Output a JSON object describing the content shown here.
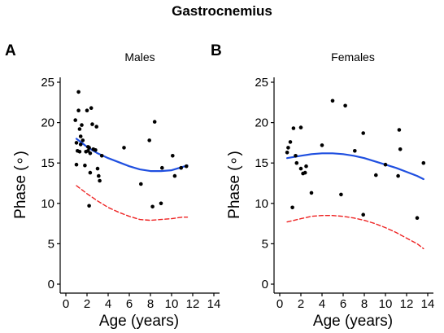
{
  "figure_title": "Gastrocnemius",
  "colors": {
    "points": "#000000",
    "fit_line": "#1f4fe0",
    "lower_line": "#ee2222"
  },
  "chart_data": [
    {
      "panel": "A",
      "type": "scatter",
      "title": "Males",
      "xlabel": "Age (years)",
      "ylabel": "Phase (∘)",
      "xlim": [
        0,
        14
      ],
      "ylim": [
        0,
        25
      ],
      "xticks": [
        0,
        2,
        4,
        6,
        8,
        10,
        12,
        14
      ],
      "yticks": [
        0,
        5,
        10,
        15,
        20,
        25
      ],
      "grid": false,
      "points": [
        [
          0.9,
          20.3
        ],
        [
          1.0,
          17.5
        ],
        [
          1.0,
          14.8
        ],
        [
          1.1,
          16.5
        ],
        [
          1.2,
          23.8
        ],
        [
          1.2,
          21.5
        ],
        [
          1.3,
          19.2
        ],
        [
          1.3,
          16.4
        ],
        [
          1.4,
          18.3
        ],
        [
          1.4,
          17.3
        ],
        [
          1.5,
          19.7
        ],
        [
          1.6,
          17.8
        ],
        [
          1.8,
          14.7
        ],
        [
          1.9,
          16.4
        ],
        [
          2.0,
          21.5
        ],
        [
          2.1,
          17.0
        ],
        [
          2.1,
          16.5
        ],
        [
          2.2,
          16.9
        ],
        [
          2.2,
          9.7
        ],
        [
          2.3,
          13.8
        ],
        [
          2.3,
          16.2
        ],
        [
          2.4,
          21.8
        ],
        [
          2.5,
          19.8
        ],
        [
          2.6,
          16.7
        ],
        [
          2.8,
          16.6
        ],
        [
          2.9,
          19.5
        ],
        [
          3.0,
          14.3
        ],
        [
          3.1,
          13.4
        ],
        [
          3.2,
          12.8
        ],
        [
          3.4,
          15.9
        ],
        [
          5.5,
          16.9
        ],
        [
          7.1,
          12.4
        ],
        [
          7.9,
          17.8
        ],
        [
          8.2,
          9.6
        ],
        [
          8.4,
          20.1
        ],
        [
          9.0,
          10.0
        ],
        [
          9.1,
          14.4
        ],
        [
          10.1,
          15.9
        ],
        [
          10.3,
          13.4
        ],
        [
          10.9,
          14.4
        ],
        [
          11.4,
          14.6
        ]
      ],
      "series": [
        {
          "style": "solid",
          "color": "blue",
          "x": [
            1.0,
            2.0,
            3.0,
            4.0,
            5.0,
            6.0,
            7.0,
            8.0,
            9.0,
            10.0,
            11.0,
            11.5
          ],
          "y": [
            18.0,
            17.0,
            16.2,
            15.6,
            15.1,
            14.6,
            14.2,
            14.0,
            14.0,
            14.1,
            14.5,
            14.7
          ]
        },
        {
          "style": "dashed",
          "color": "red",
          "x": [
            1.0,
            2.0,
            3.0,
            4.0,
            5.0,
            6.0,
            7.0,
            8.0,
            9.0,
            10.0,
            11.0,
            11.5
          ],
          "y": [
            12.2,
            11.2,
            10.3,
            9.5,
            8.9,
            8.4,
            8.0,
            7.9,
            8.0,
            8.1,
            8.3,
            8.3
          ]
        }
      ]
    },
    {
      "panel": "B",
      "type": "scatter",
      "title": "Females",
      "xlabel": "Age (years)",
      "ylabel": "Phase (∘)",
      "xlim": [
        0,
        14
      ],
      "ylim": [
        0,
        25
      ],
      "xticks": [
        0,
        2,
        4,
        6,
        8,
        10,
        12,
        14
      ],
      "yticks": [
        0,
        5,
        10,
        15,
        20,
        25
      ],
      "grid": false,
      "points": [
        [
          0.7,
          16.3
        ],
        [
          0.8,
          16.9
        ],
        [
          1.0,
          17.6
        ],
        [
          1.3,
          19.3
        ],
        [
          1.2,
          9.5
        ],
        [
          1.5,
          15.9
        ],
        [
          1.6,
          15.0
        ],
        [
          2.0,
          19.4
        ],
        [
          2.0,
          14.3
        ],
        [
          2.2,
          13.7
        ],
        [
          2.4,
          13.8
        ],
        [
          2.5,
          14.6
        ],
        [
          3.0,
          11.3
        ],
        [
          4.0,
          17.2
        ],
        [
          5.0,
          22.7
        ],
        [
          5.8,
          11.1
        ],
        [
          6.2,
          22.1
        ],
        [
          7.1,
          16.5
        ],
        [
          7.9,
          18.7
        ],
        [
          7.9,
          8.6
        ],
        [
          9.1,
          13.5
        ],
        [
          10.0,
          14.8
        ],
        [
          11.2,
          13.4
        ],
        [
          11.3,
          19.1
        ],
        [
          11.4,
          16.7
        ],
        [
          13.0,
          8.2
        ],
        [
          13.6,
          15.0
        ]
      ],
      "series": [
        {
          "style": "solid",
          "color": "blue",
          "x": [
            0.7,
            2.0,
            3.0,
            4.0,
            5.0,
            6.0,
            7.0,
            8.0,
            9.0,
            10.0,
            11.0,
            12.0,
            13.0,
            13.6
          ],
          "y": [
            15.6,
            15.9,
            16.1,
            16.2,
            16.2,
            16.1,
            15.9,
            15.6,
            15.2,
            14.8,
            14.4,
            13.9,
            13.4,
            13.0
          ]
        },
        {
          "style": "dashed",
          "color": "red",
          "x": [
            0.7,
            2.0,
            3.0,
            4.0,
            5.0,
            6.0,
            7.0,
            8.0,
            9.0,
            10.0,
            11.0,
            12.0,
            13.0,
            13.6
          ],
          "y": [
            7.7,
            8.1,
            8.4,
            8.5,
            8.5,
            8.4,
            8.2,
            7.9,
            7.5,
            7.0,
            6.4,
            5.7,
            5.0,
            4.4
          ]
        }
      ]
    }
  ]
}
